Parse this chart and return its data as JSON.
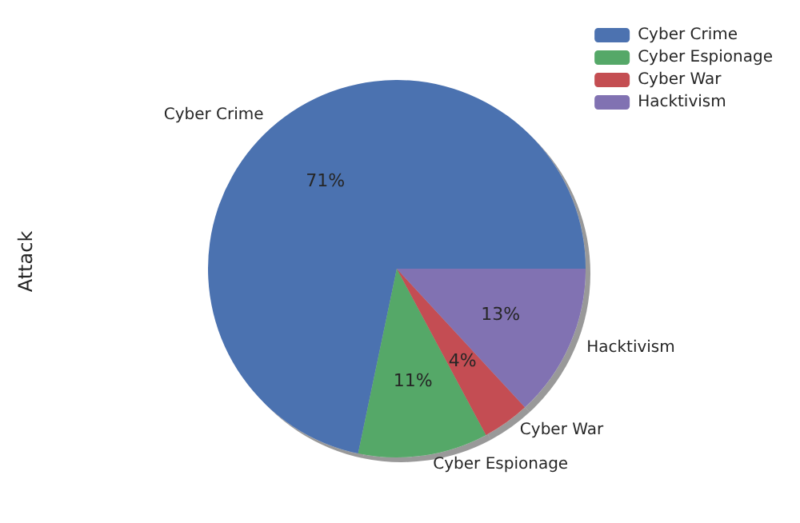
{
  "chart_data": {
    "type": "pie",
    "ylabel": "Attack",
    "categories": [
      "Cyber Crime",
      "Cyber Espionage",
      "Cyber War",
      "Hacktivism"
    ],
    "values": [
      71,
      11,
      4,
      13
    ],
    "colors": [
      "#4c72b0",
      "#55a868",
      "#c44e52",
      "#8172b2"
    ],
    "value_labels": [
      "71%",
      "11%",
      "4%",
      "13%"
    ],
    "legend": "top right"
  }
}
